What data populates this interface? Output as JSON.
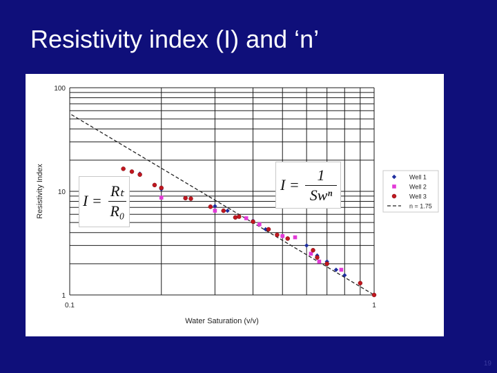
{
  "slide": {
    "title": "Resistivity index (I) and ‘n’",
    "page_number": "19"
  },
  "formulas": {
    "left": {
      "lhs": "I =",
      "numerator": "Rₜ",
      "denominator": "R₀"
    },
    "right": {
      "lhs": "I =",
      "numerator": "1",
      "denominator": "Swⁿ"
    }
  },
  "colors": {
    "background": "#0f0f7a",
    "well1": "#1f2f9f",
    "well2": "#e23ad7",
    "well3": "#c0171f",
    "fit_line": "#222222"
  },
  "chart_data": {
    "type": "scatter",
    "xscale": "log",
    "yscale": "log",
    "xlim": [
      0.1,
      1
    ],
    "ylim": [
      1,
      100
    ],
    "xlabel": "Water Saturation (v/v)",
    "ylabel": "Resistivity Index",
    "x_ticks": [
      0.1,
      1
    ],
    "x_tick_labels": [
      "0.1",
      "1"
    ],
    "y_ticks": [
      1,
      10,
      100
    ],
    "y_tick_labels": [
      "1",
      "10",
      "100"
    ],
    "grid": true,
    "legend_position": "right",
    "series": [
      {
        "name": "Well 1",
        "marker": "diamond",
        "color": "#1f2f9f",
        "points": [
          [
            0.17,
            14.8
          ],
          [
            0.2,
            10.5
          ],
          [
            0.24,
            8.6
          ],
          [
            0.3,
            7.2
          ],
          [
            0.33,
            6.5
          ],
          [
            0.36,
            5.7
          ],
          [
            0.4,
            5.2
          ],
          [
            0.44,
            4.3
          ],
          [
            0.5,
            3.7
          ],
          [
            0.6,
            3.0
          ],
          [
            0.65,
            2.4
          ],
          [
            0.7,
            2.1
          ],
          [
            0.75,
            1.75
          ],
          [
            0.8,
            1.55
          ]
        ]
      },
      {
        "name": "Well 2",
        "marker": "square",
        "color": "#e23ad7",
        "points": [
          [
            0.2,
            8.7
          ],
          [
            0.3,
            6.5
          ],
          [
            0.38,
            5.5
          ],
          [
            0.42,
            4.8
          ],
          [
            0.5,
            3.7
          ],
          [
            0.55,
            3.6
          ],
          [
            0.62,
            2.5
          ],
          [
            0.66,
            2.1
          ],
          [
            0.78,
            1.75
          ]
        ]
      },
      {
        "name": "Well 3",
        "marker": "circle",
        "color": "#c0171f",
        "points": [
          [
            0.15,
            16.5
          ],
          [
            0.16,
            15.5
          ],
          [
            0.17,
            14.5
          ],
          [
            0.19,
            11.5
          ],
          [
            0.2,
            10.8
          ],
          [
            0.24,
            8.6
          ],
          [
            0.25,
            8.5
          ],
          [
            0.29,
            7.1
          ],
          [
            0.32,
            6.5
          ],
          [
            0.35,
            5.6
          ],
          [
            0.36,
            5.7
          ],
          [
            0.4,
            5.1
          ],
          [
            0.45,
            4.3
          ],
          [
            0.48,
            3.8
          ],
          [
            0.52,
            3.5
          ],
          [
            0.63,
            2.7
          ],
          [
            0.65,
            2.3
          ],
          [
            0.7,
            2.0
          ],
          [
            0.9,
            1.3
          ],
          [
            1.0,
            1.0
          ]
        ]
      }
    ],
    "fit_line": {
      "name": "n = 1.75",
      "exponent": 1.75,
      "style": "dashed",
      "color": "#222222"
    }
  }
}
